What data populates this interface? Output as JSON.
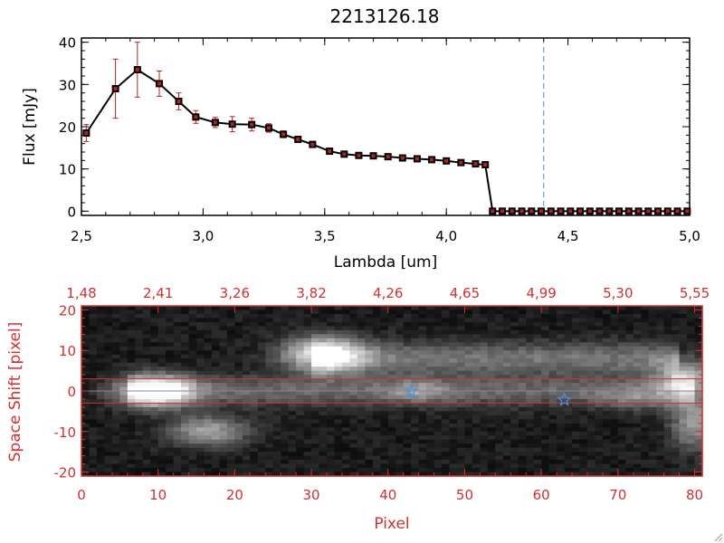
{
  "chart_data": [
    {
      "type": "line",
      "title": "2213126.18",
      "xlabel": "Lambda [um]",
      "ylabel": "Flux [mJy]",
      "xlim": [
        2.5,
        5.0
      ],
      "ylim": [
        -1,
        41
      ],
      "x_ticks": [
        "2.5",
        "3.0",
        "3.5",
        "4.0",
        "4.5",
        "5.0"
      ],
      "y_ticks": [
        "0",
        "10",
        "20",
        "30",
        "40"
      ],
      "marker_color": "#b22222",
      "line_color": "#000000",
      "vline": {
        "x": 4.4,
        "color": "#4a90e2",
        "style": "dashed"
      },
      "series": [
        {
          "x": [
            2.52,
            2.64,
            2.73,
            2.82,
            2.9,
            2.97,
            3.05,
            3.12,
            3.2,
            3.27,
            3.33,
            3.39,
            3.45,
            3.52,
            3.58,
            3.64,
            3.7,
            3.76,
            3.82,
            3.88,
            3.94,
            4.0,
            4.06,
            4.12,
            4.16,
            4.19,
            4.23,
            4.27,
            4.31,
            4.35,
            4.39,
            4.43,
            4.47,
            4.51,
            4.55,
            4.59,
            4.63,
            4.67,
            4.71,
            4.75,
            4.79,
            4.83,
            4.87,
            4.91,
            4.95,
            4.99
          ],
          "y": [
            18.5,
            29,
            33.5,
            30.2,
            26,
            22.3,
            21,
            20.6,
            20.5,
            19.7,
            18.2,
            17,
            15.8,
            14.2,
            13.5,
            13.2,
            13.1,
            12.9,
            12.6,
            12.4,
            12.2,
            11.9,
            11.5,
            11.2,
            11.0,
            0,
            0,
            0,
            0,
            0,
            0,
            0,
            0,
            0,
            0,
            0,
            0,
            0,
            0,
            0,
            0,
            0,
            0,
            0,
            0,
            0
          ],
          "yerr": [
            2,
            7,
            6.5,
            3,
            2,
            1.5,
            1.2,
            1.8,
            1.5,
            1,
            0.8,
            0.6,
            0.5,
            0.4,
            0.3,
            0.3,
            0.3,
            0.3,
            0.3,
            0.3,
            0.3,
            0.3,
            0.3,
            0.3,
            0.3,
            0,
            0,
            0,
            0,
            0,
            0,
            0,
            0,
            0,
            0,
            0,
            0,
            0,
            0,
            0,
            0,
            0,
            0,
            0,
            0,
            0
          ]
        }
      ]
    },
    {
      "type": "heatmap",
      "xlabel": "Pixel",
      "ylabel": "Space Shift [pixel]",
      "xlim": [
        0,
        81
      ],
      "ylim": [
        -21,
        21
      ],
      "x_ticks": [
        "0",
        "10",
        "20",
        "30",
        "40",
        "50",
        "60",
        "70",
        "80"
      ],
      "y_ticks": [
        "-20",
        "-10",
        "0",
        "10",
        "20"
      ],
      "top_ticks": [
        "1.48",
        "2.41",
        "3.26",
        "3.82",
        "4.26",
        "4.65",
        "4.99",
        "5.30",
        "5.55"
      ],
      "axis_color": "#d03030",
      "band_lines": {
        "y": [
          3,
          -3
        ],
        "color": "#d03030"
      },
      "center_line": {
        "y": 0,
        "color": "#888888"
      },
      "stars": [
        {
          "x": 43,
          "y": 0,
          "color": "#4a90e2"
        },
        {
          "x": 63,
          "y": -2.2,
          "color": "#4a90e2"
        }
      ],
      "sources": [
        {
          "x": 9.5,
          "y": 0,
          "sx": 3.5,
          "sy": 2.6,
          "amp": 1.0
        },
        {
          "x": 31.5,
          "y": 9,
          "sx": 3.8,
          "sy": 3.0,
          "amp": 0.85
        },
        {
          "x": 16.5,
          "y": -10,
          "sx": 3.5,
          "sy": 2.6,
          "amp": 0.55
        },
        {
          "x": 79,
          "y": 3,
          "sx": 2.6,
          "sy": 3.5,
          "amp": 0.6
        },
        {
          "x": 80,
          "y": -8,
          "sx": 2.2,
          "sy": 4.5,
          "amp": 0.5
        },
        {
          "x": 44,
          "y": 0,
          "sx": 3.0,
          "sy": 2.0,
          "amp": 0.25
        },
        {
          "x": 72,
          "y": -2,
          "sx": 3.0,
          "sy": 2.0,
          "amp": 0.22
        }
      ],
      "streaks": [
        {
          "x0": 6,
          "x1": 80,
          "y": 0,
          "sy": 2.6,
          "amp": 0.3
        },
        {
          "x0": 30,
          "x1": 78,
          "y": 8,
          "sy": 2.8,
          "amp": 0.35
        }
      ],
      "noise_level": 0.12
    }
  ]
}
